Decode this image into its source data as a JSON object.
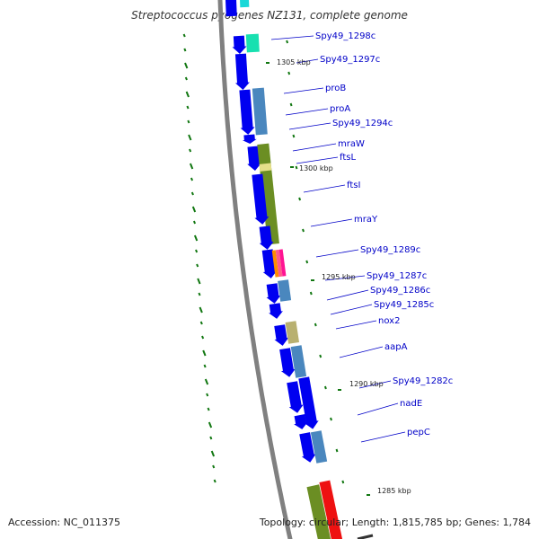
{
  "title": "Streptococcus pyogenes NZ131, complete genome",
  "footer": {
    "accession": "Accession: NC_011375",
    "stats": "Topology: circular; Length: 1,815,785 bp; Genes: 1,784"
  },
  "colors": {
    "backbone": "#808080",
    "forward_strand_gene": "#0000f0",
    "reverse_strand_gene": "#4a87be",
    "rna_gene": "#6b8e23",
    "gc_tick": "#117711",
    "label_text": "#0000c8",
    "leader_line": "#0000c8",
    "coordinate_text": "#222222"
  },
  "gene_labels": [
    "Spy49_1298c",
    "Spy49_1297c",
    "proB",
    "proA",
    "Spy49_1294c",
    "mraW",
    "ftsL",
    "ftsI",
    "mraY",
    "Spy49_1289c",
    "Spy49_1287c",
    "Spy49_1286c",
    "Spy49_1285c",
    "nox2",
    "aapA",
    "Spy49_1282c",
    "nadE",
    "pepC"
  ],
  "coordinate_labels": [
    "1305 kbp",
    "1300 kbp",
    "1295 kbp",
    "1290 kbp",
    "1285 kbp"
  ]
}
